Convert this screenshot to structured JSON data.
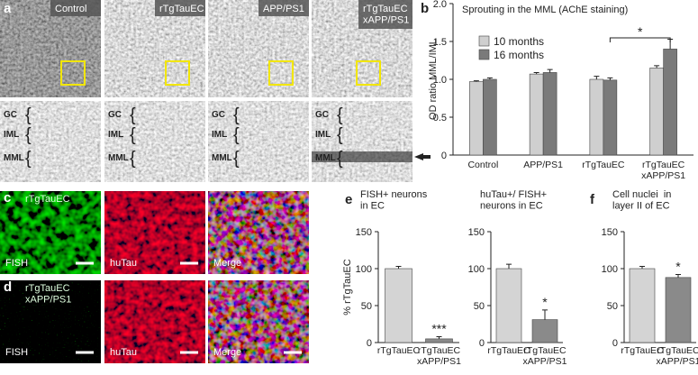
{
  "figure": {
    "panel_labels": [
      "a",
      "b",
      "c",
      "d",
      "e",
      "f"
    ],
    "a_labels": [
      "Control",
      "rTgTauEC",
      "APP/PS1",
      "rTgTauEC\nxAPP/PS1"
    ],
    "layers": [
      "GC",
      "IML",
      "MML"
    ],
    "c_label": "rTgTauEC",
    "d_label": "rTgTauEC\nxAPP/PS1",
    "channels": [
      "FISH",
      "huTau",
      "Merge"
    ]
  },
  "chart_data": [
    {
      "type": "bar",
      "title": "Sprouting in the MML (AChE staining)",
      "y_label": "OD ratio MML/IML",
      "categories": [
        "Control",
        "APP/PS1",
        "rTgTauEC",
        "rTgTauEC\nxAPP/PS1"
      ],
      "series": [
        {
          "name": "10 months",
          "color": "#cfcfcf",
          "values": [
            0.97,
            1.07,
            1.0,
            1.15
          ],
          "errors": [
            0.01,
            0.02,
            0.04,
            0.03
          ]
        },
        {
          "name": "16 months",
          "color": "#7a7a7a",
          "values": [
            1.0,
            1.09,
            0.99,
            1.4
          ],
          "errors": [
            0.02,
            0.04,
            0.03,
            0.13
          ]
        }
      ],
      "significance": "*",
      "ylim": [
        0,
        2
      ],
      "yticks": [
        0,
        0.5,
        {
          "value": 1,
          "label": "1.0"
        },
        1.5,
        {
          "value": 2,
          "label": "2.0"
        }
      ]
    },
    {
      "type": "bar",
      "title": "FISH+ neurons\nin EC",
      "y_label": "% rTgTauEC",
      "categories": [
        "rTgTauEC",
        "rTgTauEC\nxAPP/PS1"
      ],
      "values": [
        100,
        5
      ],
      "errors": [
        3,
        3
      ],
      "colors": [
        "#d4d4d4",
        "#8a8a8a"
      ],
      "significance": "***",
      "ylim": [
        0,
        150
      ],
      "yticks": [
        0,
        50,
        100,
        150
      ]
    },
    {
      "type": "bar",
      "title": "huTau+/ FISH+\nneurons in EC",
      "categories": [
        "rTgTauEC",
        "rTgTauEC\nxAPP/PS1"
      ],
      "values": [
        100,
        31
      ],
      "errors": [
        6,
        13
      ],
      "colors": [
        "#d4d4d4",
        "#8a8a8a"
      ],
      "significance": "*",
      "ylim": [
        0,
        150
      ],
      "yticks": [
        0,
        50,
        100,
        150
      ]
    },
    {
      "type": "bar",
      "title": "Cell nuclei  in\nlayer II of EC",
      "categories": [
        "rTgTauEC",
        "rTgTauEC\nxAPP/PS1"
      ],
      "values": [
        100,
        88
      ],
      "errors": [
        3,
        4
      ],
      "colors": [
        "#d4d4d4",
        "#8a8a8a"
      ],
      "significance": "*",
      "ylim": [
        0,
        150
      ],
      "yticks": [
        0,
        50,
        100,
        150
      ]
    }
  ]
}
